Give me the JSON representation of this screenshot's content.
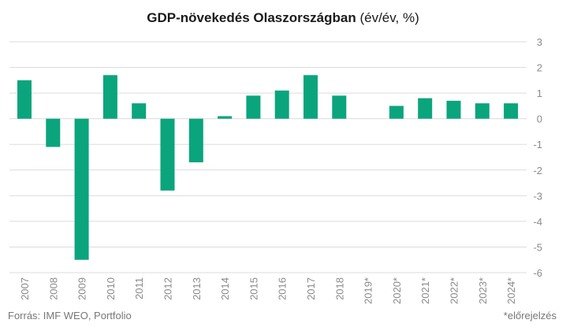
{
  "title_bold": "GDP-növekedés Olaszországban",
  "title_light": " (év/év, %)",
  "source": "Forrás: IMF WEO, Portfolio",
  "note": "*előrejelzés",
  "colors": {
    "bar": "#0aa57d",
    "grid": "#dcdcdc",
    "axis_text": "#8a8a8a"
  },
  "chart_data": {
    "type": "bar",
    "categories": [
      "2007",
      "2008",
      "2009",
      "2010",
      "2011",
      "2012",
      "2013",
      "2014",
      "2015",
      "2016",
      "2017",
      "2018",
      "2019*",
      "2020*",
      "2021*",
      "2022*",
      "2023*",
      "2024*"
    ],
    "values": [
      1.5,
      -1.1,
      -5.5,
      1.7,
      0.6,
      -2.8,
      -1.7,
      0.1,
      0.9,
      1.1,
      1.7,
      0.9,
      0.0,
      0.5,
      0.8,
      0.7,
      0.6,
      0.6
    ],
    "ylim": [
      -6,
      3
    ],
    "yticks": [
      3,
      2,
      1,
      0,
      -1,
      -2,
      -3,
      -4,
      -5,
      -6
    ],
    "ytick_labels": [
      "3",
      "2",
      "1",
      "0",
      "-1",
      "-2",
      "-3",
      "-4",
      "-5",
      "-6"
    ],
    "grid": true,
    "xlabel": "",
    "ylabel": ""
  }
}
